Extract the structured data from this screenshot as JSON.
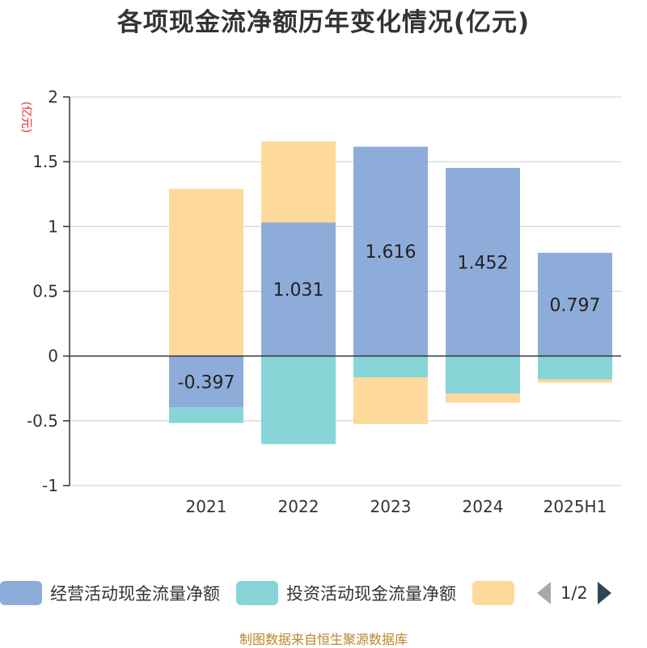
{
  "chart_data": {
    "type": "bar",
    "stacked": true,
    "title": "各项现金流净额历年变化情况(亿元)",
    "ylabel": "(亿元)",
    "xlabel": "",
    "ylim": [
      -1,
      2
    ],
    "yticks": [
      2,
      1.5,
      1,
      0.5,
      0,
      -0.5,
      -1
    ],
    "ytick_labels": [
      "2",
      "1.5",
      "1",
      "0.5",
      "0",
      "-0.5",
      "-1"
    ],
    "categories": [
      "2021",
      "2022",
      "2023",
      "2024",
      "2025H1"
    ],
    "series": [
      {
        "name": "经营活动现金流量净额",
        "color": "#8eacd9",
        "values": [
          -0.397,
          1.031,
          1.616,
          1.452,
          0.797
        ],
        "labels": [
          "-0.397",
          "1.031",
          "1.616",
          "1.452",
          "0.797"
        ]
      },
      {
        "name": "投资活动现金流量净额",
        "color": "#87d5d6",
        "values": [
          -0.12,
          -0.68,
          -0.165,
          -0.29,
          -0.18
        ]
      },
      {
        "name": "",
        "color": "#fdd99b",
        "values": [
          1.29,
          0.625,
          -0.36,
          -0.07,
          -0.025
        ]
      }
    ],
    "grid": true,
    "legend_position": "bottom"
  },
  "legend": {
    "items": [
      "经营活动现金流量净额",
      "投资活动现金流量净额",
      ""
    ],
    "page": "1/2"
  },
  "source": "制图数据来自恒生聚源数据库"
}
